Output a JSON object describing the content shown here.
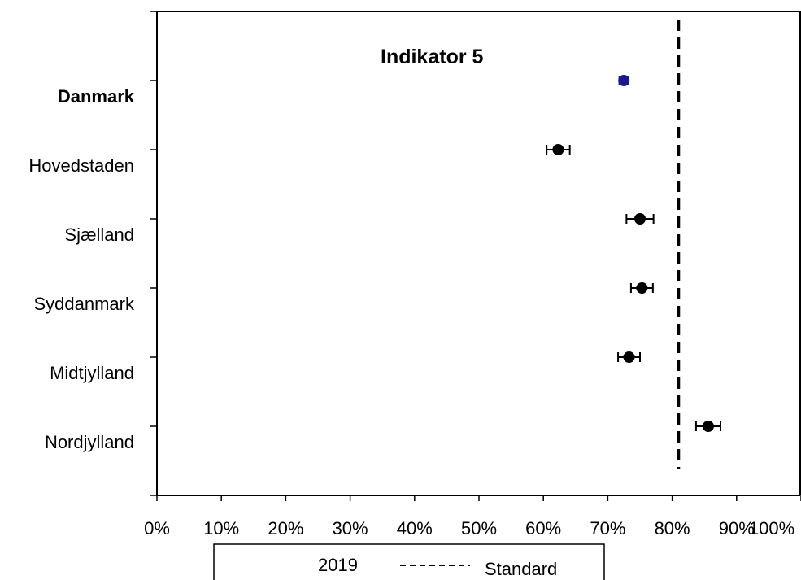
{
  "chart_data": {
    "type": "scatter",
    "title": "Indikator 5",
    "xlabel": "",
    "ylabel": "",
    "xlim": [
      0,
      100
    ],
    "x_unit": "%",
    "x_ticks": [
      "0%",
      "10%",
      "20%",
      "30%",
      "40%",
      "50%",
      "60%",
      "70%",
      "80%",
      "90%",
      "100%"
    ],
    "categories": [
      "Danmark",
      "Hovedstaden",
      "Sjælland",
      "Syddanmark",
      "Midtjylland",
      "Nordjylland"
    ],
    "category_bold": [
      true,
      false,
      false,
      false,
      false,
      false
    ],
    "series": [
      {
        "name": "2019",
        "values": [
          72.5,
          62.3,
          75.0,
          75.3,
          73.3,
          85.6
        ],
        "ci_low": [
          71.8,
          60.5,
          72.9,
          73.6,
          71.6,
          83.7
        ],
        "ci_high": [
          73.2,
          64.1,
          77.1,
          77.0,
          75.0,
          87.5
        ],
        "colors": [
          "#1a1a8c",
          "#000000",
          "#000000",
          "#000000",
          "#000000",
          "#000000"
        ]
      }
    ],
    "reference_line": {
      "name": "Standard",
      "value": 81,
      "style": "dashed"
    },
    "grid": false,
    "legend_position": "bottom",
    "legend_labels": [
      "2019",
      "Standard"
    ]
  }
}
